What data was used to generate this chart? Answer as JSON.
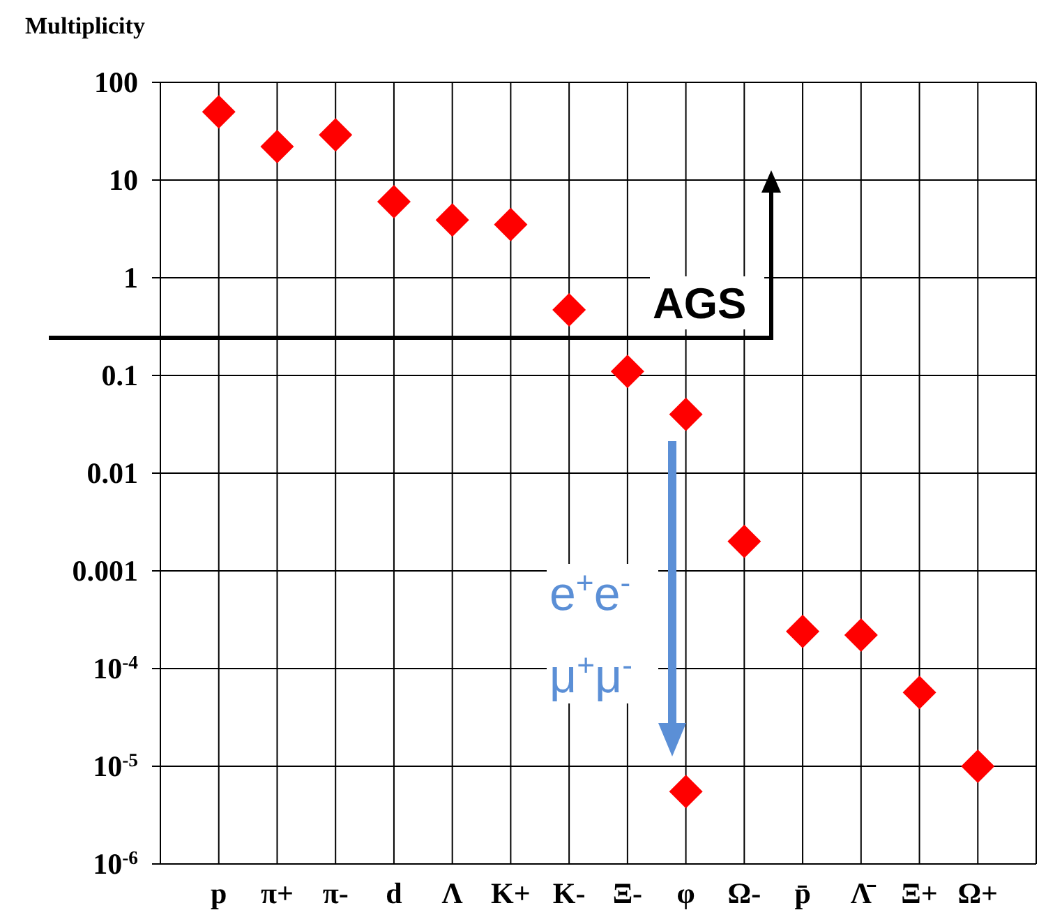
{
  "chart_data": {
    "type": "scatter",
    "ylabel": "Multiplicity",
    "categories": [
      "p",
      "π+",
      "π-",
      "d",
      "Λ",
      "K+",
      "K-",
      "Ξ-",
      "φ",
      "Ω-",
      "p̄",
      "Λ̄",
      "Ξ+",
      "Ω+"
    ],
    "series": [
      {
        "color": "#ff0000",
        "values": [
          50,
          22,
          29,
          6,
          3.9,
          3.5,
          0.47,
          0.11,
          0.04,
          0.002,
          0.00024,
          0.00022,
          5.7e-05,
          1e-05
        ]
      },
      {
        "color": "#ff0000",
        "x": [
          "φ"
        ],
        "values": [
          5.5e-06
        ]
      }
    ],
    "log": true,
    "ylim": [
      1e-06,
      100
    ],
    "yticks": [
      {
        "value": 1e-06,
        "label": "10$^{-6}$"
      },
      {
        "value": 1e-05,
        "label": "10$^{-5}$"
      },
      {
        "value": 0.0001,
        "label": "10$^{-4}$"
      },
      0.001,
      0.01,
      0.1,
      1,
      10,
      100
    ],
    "grid": true,
    "marker": "diamond",
    "annotations": [
      "AGS",
      "e$^{+}$e$^{-}$",
      "μ$^{+}$μ$^{-}$"
    ]
  }
}
